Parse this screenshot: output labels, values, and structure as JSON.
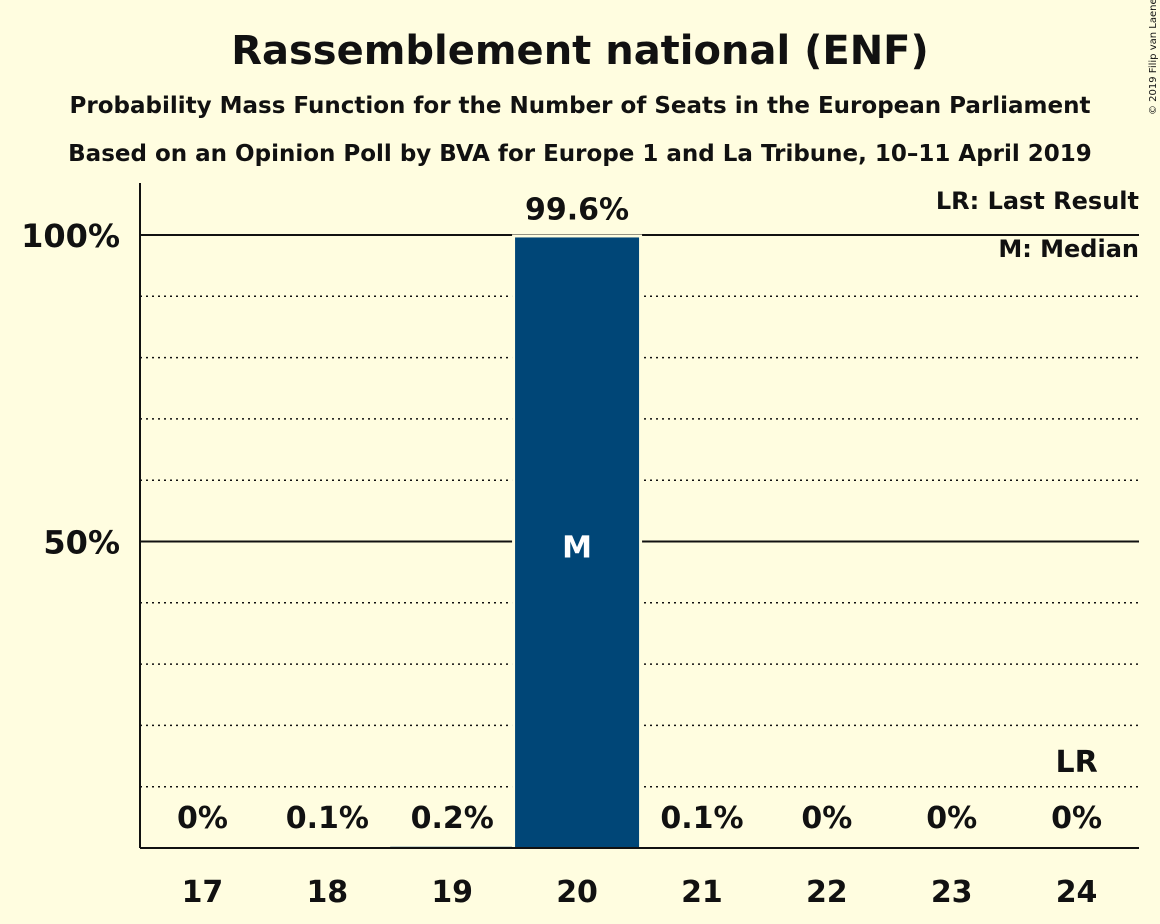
{
  "chart_data": {
    "type": "bar",
    "title": "Rassemblement national (ENF)",
    "subtitle_lines": [
      "Probability Mass Function for the Number of Seats in the European Parliament",
      "Based on an Opinion Poll by BVA for Europe 1 and La Tribune, 10–11 April 2019"
    ],
    "categories": [
      "17",
      "18",
      "19",
      "20",
      "21",
      "22",
      "23",
      "24"
    ],
    "values": [
      0,
      0.1,
      0.2,
      99.6,
      0.1,
      0,
      0,
      0
    ],
    "value_labels": [
      "0%",
      "0.1%",
      "0.2%",
      "99.6%",
      "0.1%",
      "0%",
      "0%",
      "0%"
    ],
    "ylim": [
      0,
      100
    ],
    "yticks": [
      {
        "value": 50,
        "label": "50%"
      },
      {
        "value": 100,
        "label": "100%"
      }
    ],
    "minor_grid_step": 10,
    "grid": true,
    "bar_color": "#004677",
    "median_category": "20",
    "median_marker": "M",
    "last_result_category": "24",
    "last_result_marker": "LR",
    "legend": [
      "LR: Last Result",
      "M: Median"
    ],
    "legend_position": "top-right",
    "copyright": "© 2019 Filip van Laenen"
  }
}
